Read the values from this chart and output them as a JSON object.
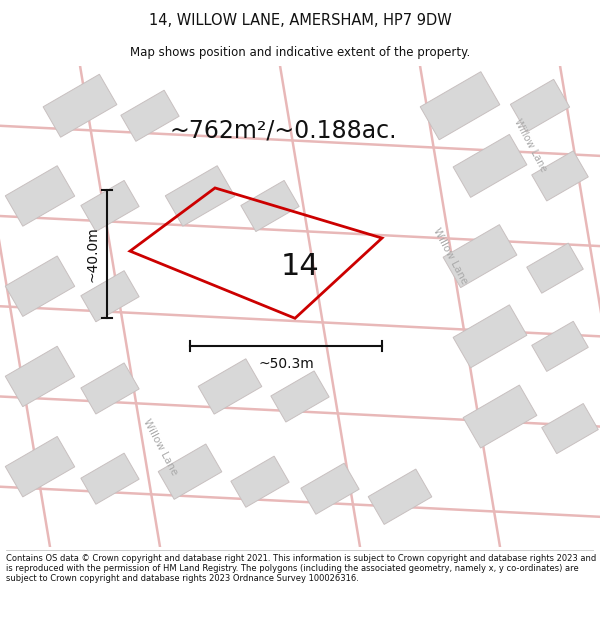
{
  "title_line1": "14, WILLOW LANE, AMERSHAM, HP7 9DW",
  "title_line2": "Map shows position and indicative extent of the property.",
  "area_text": "~762m²/~0.188ac.",
  "dim_width": "~50.3m",
  "dim_height": "~40.0m",
  "plot_number": "14",
  "footer_text": "Contains OS data © Crown copyright and database right 2021. This information is subject to Crown copyright and database rights 2023 and is reproduced with the permission of HM Land Registry. The polygons (including the associated geometry, namely x, y co-ordinates) are subject to Crown copyright and database rights 2023 Ordnance Survey 100026316.",
  "bg_color": "#ffffff",
  "map_bg": "#ffffff",
  "building_fill": "#d8d8d8",
  "building_edge": "#c8c0c0",
  "road_color": "#e8b8b8",
  "plot_edge_color": "#cc0000",
  "plot_fill": "#ffffff",
  "dim_line_color": "#111111",
  "title_color": "#111111",
  "footer_color": "#111111",
  "street_label_color": "#aaaaaa",
  "road_lw": 1.2,
  "building_lw": 0.7,
  "plot_lw": 2.0
}
